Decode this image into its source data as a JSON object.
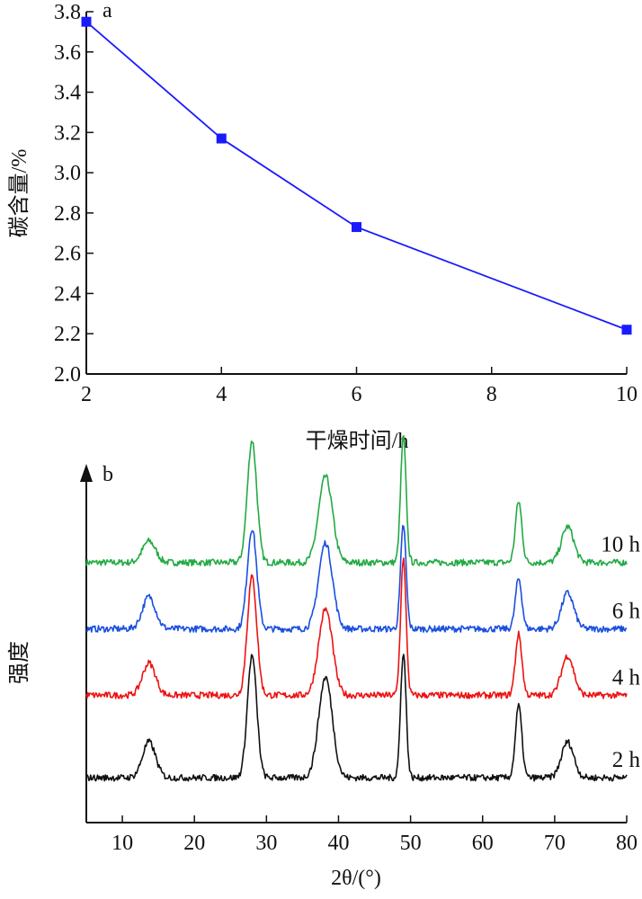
{
  "chart_data": [
    {
      "type": "line",
      "panel_label": "a",
      "title": "",
      "xlabel": "干燥时间/h",
      "ylabel": "碳含量/%",
      "x": [
        2,
        4,
        6,
        10
      ],
      "series": [
        {
          "values": [
            3.75,
            3.17,
            2.73,
            2.22
          ],
          "color": "#1a1aff",
          "marker": "square"
        }
      ],
      "xticks": [
        "2",
        "4",
        "6",
        "8",
        "10"
      ],
      "yticks": [
        "2.0",
        "2.2",
        "2.4",
        "2.6",
        "2.8",
        "3.0",
        "3.2",
        "3.4",
        "3.6",
        "3.8"
      ],
      "xlim": [
        2,
        10
      ],
      "ylim": [
        2.0,
        3.8
      ],
      "grid": false
    },
    {
      "type": "line",
      "panel_label": "b",
      "title": "",
      "xlabel": "2θ/(°)",
      "ylabel": "强度",
      "xlim": [
        5,
        80
      ],
      "xticks": [
        "10",
        "20",
        "30",
        "40",
        "50",
        "60",
        "70",
        "80"
      ],
      "y_axis_ticks": false,
      "peaks_2theta": [
        13.7,
        28.0,
        38.2,
        49.0,
        65.0,
        71.8
      ],
      "series": [
        {
          "name": "10 h",
          "color": "#22aa44",
          "baseline": 0.725,
          "peak_heights": [
            0.06,
            0.34,
            0.24,
            0.35,
            0.17,
            0.1
          ]
        },
        {
          "name": "6 h",
          "color": "#1a4fe0",
          "baseline": 0.54,
          "peak_heights": [
            0.09,
            0.28,
            0.24,
            0.29,
            0.14,
            0.1
          ]
        },
        {
          "name": "4 h",
          "color": "#ee1111",
          "baseline": 0.355,
          "peak_heights": [
            0.09,
            0.33,
            0.24,
            0.38,
            0.17,
            0.11
          ]
        },
        {
          "name": "2 h",
          "color": "#111111",
          "baseline": 0.125,
          "peak_heights": [
            0.1,
            0.34,
            0.28,
            0.35,
            0.2,
            0.1
          ]
        }
      ],
      "grid": false
    }
  ]
}
